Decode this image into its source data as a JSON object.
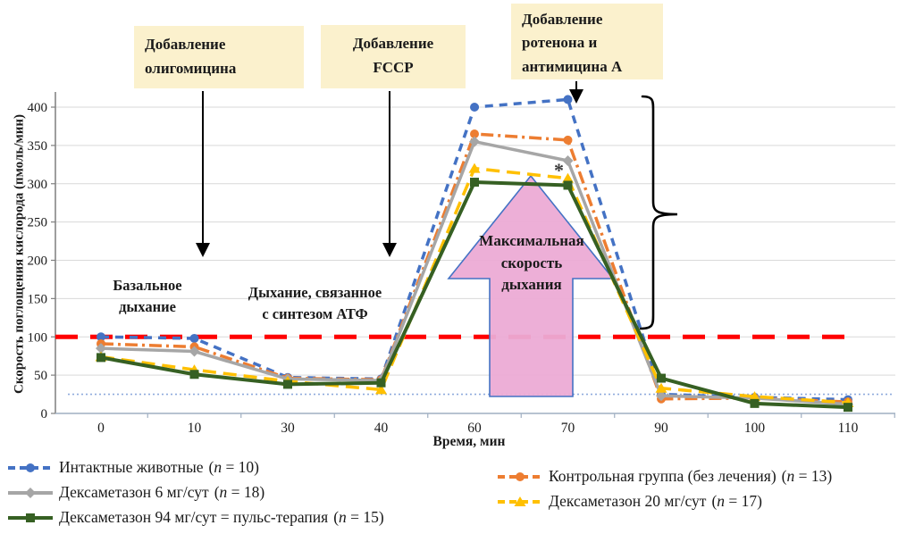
{
  "chart_data": {
    "type": "line",
    "x": [
      "0",
      "10",
      "30",
      "40",
      "60",
      "70",
      "90",
      "100",
      "110"
    ],
    "xlabel": "Время, мин",
    "ylabel": "Скорость поглощения кислорода (пмоль/мин)",
    "ylim": [
      0,
      420
    ],
    "yticks": [
      0,
      50,
      100,
      150,
      200,
      250,
      300,
      350,
      400
    ],
    "grid": true,
    "legend_position": "bottom",
    "series": [
      {
        "name": "Интактные животные",
        "n_suffix": " = 10)",
        "color": "#4472C4",
        "dash": "9,7",
        "marker": "circle",
        "width": 3.5,
        "values": [
          100,
          98,
          47,
          45,
          400,
          410,
          25,
          21,
          18
        ]
      },
      {
        "name": "Контрольная группа (без лечения)",
        "n_suffix": " = 13)",
        "color": "#ED7D31",
        "dash": "14,5,3,5",
        "marker": "circle",
        "width": 3.5,
        "values": [
          91,
          87,
          46,
          44,
          365,
          357,
          19,
          20,
          15
        ]
      },
      {
        "name": "Дексаметазон 6 мг/сут",
        "n_suffix": " = 18)",
        "color": "#A6A6A6",
        "dash": null,
        "marker": "diamond",
        "width": 3.5,
        "values": [
          85,
          81,
          45,
          43,
          355,
          330,
          23,
          20,
          12
        ]
      },
      {
        "name": "Дексаметазон 20 мг/сут",
        "n_suffix": " = 17)",
        "color": "#FFC000",
        "dash": "15,8",
        "marker": "triangle",
        "width": 3.5,
        "values": [
          74,
          57,
          42,
          31,
          320,
          307,
          33,
          22,
          14
        ]
      },
      {
        "name": "Дексаметазон 94 мг/сут = пульс-терапия",
        "n_suffix": " = 15)",
        "color": "#366023",
        "dash": null,
        "marker": "square",
        "width": 4,
        "values": [
          73,
          51,
          38,
          40,
          302,
          298,
          46,
          13,
          8
        ]
      }
    ],
    "reference_lines": [
      {
        "value": 100,
        "color": "#FF0000",
        "dash": "25,14",
        "width": 5,
        "x_from": 62,
        "x_to": 948
      },
      {
        "value": 25,
        "color": "#8FAADC",
        "dash": "2,3",
        "width": 1.6,
        "x_from": 76,
        "x_to": 1000
      }
    ]
  },
  "annotations": {
    "oligomycin": "Добавление\nолигомицина",
    "fccp": "Добавление\nFCCP",
    "rotenone": "Добавление\nротенона и\nантимицина А",
    "basal": "Базальное\nдыхание",
    "atp": "Дыхание, связанное\nс синтезом АТФ",
    "max_rate": "Максимальная\nскорость\nдыхания",
    "star": "*"
  },
  "legend": {
    "n_prefix": "(",
    "n_symbol": "n"
  },
  "colors": {
    "callout_bg": "#FBF1CD",
    "arrow_fill": "#ECABD5",
    "arrow_border": "#4472C4",
    "gridline": "#D9D9D9",
    "axis": "#9FAFC2"
  }
}
